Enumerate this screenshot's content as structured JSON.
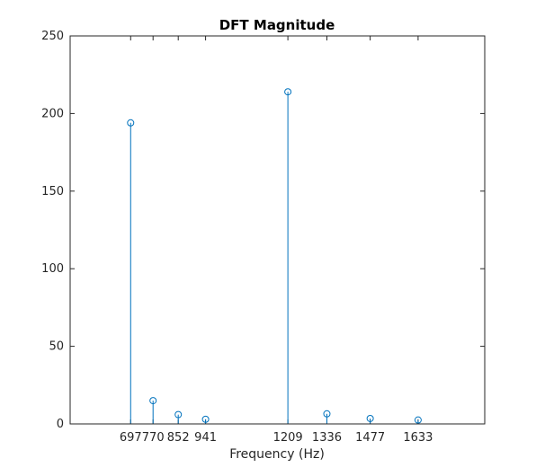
{
  "chart_data": {
    "type": "stem",
    "title": "DFT Magnitude",
    "xlabel": "Frequency (Hz)",
    "ylabel": "",
    "xlim": [
      500,
      1850
    ],
    "ylim": [
      0,
      250
    ],
    "x_ticks": [
      697,
      770,
      852,
      941,
      1209,
      1336,
      1477,
      1633
    ],
    "y_ticks": [
      0,
      50,
      100,
      150,
      200,
      250
    ],
    "x": [
      697,
      770,
      852,
      941,
      1209,
      1336,
      1477,
      1633
    ],
    "y": [
      194,
      15,
      6,
      3,
      214,
      6.5,
      3.5,
      2.5
    ],
    "series_color": "#0072BD",
    "grid": false,
    "box": true
  }
}
